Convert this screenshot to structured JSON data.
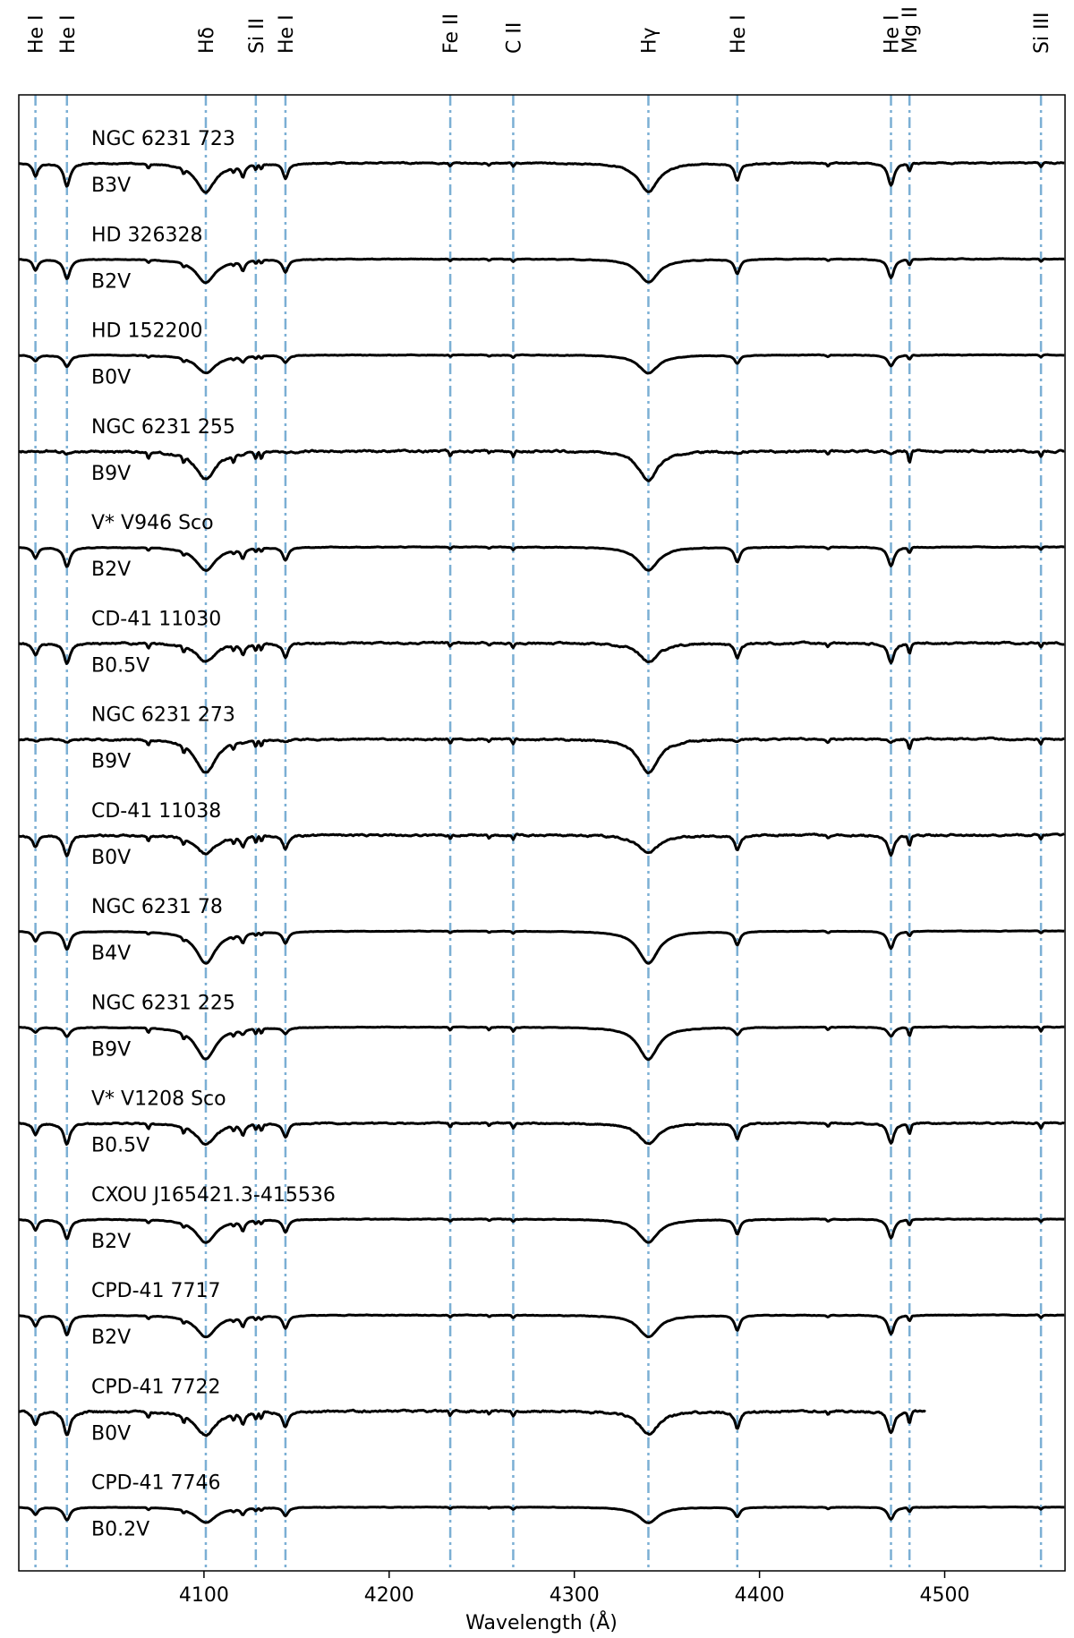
{
  "chart_data": {
    "type": "line",
    "title": "",
    "xlabel": "Wavelength (Å)",
    "ylabel": "",
    "xlim": [
      4000,
      4565
    ],
    "xticks": [
      4100,
      4200,
      4300,
      4400,
      4500
    ],
    "grid": false,
    "reference_lines": [
      {
        "label": "He I",
        "wavelength": 4009
      },
      {
        "label": "He I",
        "wavelength": 4026
      },
      {
        "label": "Hδ",
        "wavelength": 4101
      },
      {
        "label": "Si II",
        "wavelength": 4128
      },
      {
        "label": "He I",
        "wavelength": 4144
      },
      {
        "label": "Fe II",
        "wavelength": 4233
      },
      {
        "label": "C II",
        "wavelength": 4267
      },
      {
        "label": "Hγ",
        "wavelength": 4340
      },
      {
        "label": "He I",
        "wavelength": 4388
      },
      {
        "label": "He I",
        "wavelength": 4471
      },
      {
        "label": "Mg II",
        "wavelength": 4481
      },
      {
        "label": "Si III",
        "wavelength": 4552
      }
    ],
    "series": [
      {
        "name": "NGC 6231 723",
        "spectral_type": "B3V",
        "x_end": 4565,
        "balmer_depth": 0.55,
        "helium_depth": 0.45,
        "metal_depth": 0.15,
        "noise": 0.05
      },
      {
        "name": "HD 326328",
        "spectral_type": "B2V",
        "x_end": 4565,
        "balmer_depth": 0.45,
        "helium_depth": 0.38,
        "metal_depth": 0.1,
        "noise": 0.03
      },
      {
        "name": "HD 152200",
        "spectral_type": "B0V",
        "x_end": 4565,
        "balmer_depth": 0.35,
        "helium_depth": 0.22,
        "metal_depth": 0.08,
        "noise": 0.03
      },
      {
        "name": "NGC 6231 255",
        "spectral_type": "B9V",
        "x_end": 4565,
        "balmer_depth": 0.55,
        "helium_depth": 0.05,
        "metal_depth": 0.22,
        "noise": 0.09
      },
      {
        "name": "V* V946 Sco",
        "spectral_type": "B2V",
        "x_end": 4565,
        "balmer_depth": 0.45,
        "helium_depth": 0.38,
        "metal_depth": 0.1,
        "noise": 0.03
      },
      {
        "name": "CD-41 11030",
        "spectral_type": "B0.5V",
        "x_end": 4565,
        "balmer_depth": 0.36,
        "helium_depth": 0.4,
        "metal_depth": 0.18,
        "noise": 0.08
      },
      {
        "name": "NGC 6231 273",
        "spectral_type": "B9V",
        "x_end": 4565,
        "balmer_depth": 0.65,
        "helium_depth": 0.05,
        "metal_depth": 0.2,
        "noise": 0.07
      },
      {
        "name": "CD-41 11038",
        "spectral_type": "B0V",
        "x_end": 4565,
        "balmer_depth": 0.36,
        "helium_depth": 0.4,
        "metal_depth": 0.18,
        "noise": 0.08
      },
      {
        "name": "NGC 6231 78",
        "spectral_type": "B4V",
        "x_end": 4565,
        "balmer_depth": 0.62,
        "helium_depth": 0.35,
        "metal_depth": 0.08,
        "noise": 0.02
      },
      {
        "name": "NGC 6231 225",
        "spectral_type": "B9V",
        "x_end": 4565,
        "balmer_depth": 0.62,
        "helium_depth": 0.18,
        "metal_depth": 0.16,
        "noise": 0.03
      },
      {
        "name": "V* V1208 Sco",
        "spectral_type": "B0.5V",
        "x_end": 4565,
        "balmer_depth": 0.4,
        "helium_depth": 0.4,
        "metal_depth": 0.18,
        "noise": 0.06
      },
      {
        "name": "CXOU J165421.3-415536",
        "spectral_type": "B2V",
        "x_end": 4565,
        "balmer_depth": 0.45,
        "helium_depth": 0.38,
        "metal_depth": 0.1,
        "noise": 0.03
      },
      {
        "name": "CPD-41 7717",
        "spectral_type": "B2V",
        "x_end": 4565,
        "balmer_depth": 0.42,
        "helium_depth": 0.38,
        "metal_depth": 0.1,
        "noise": 0.03
      },
      {
        "name": "CPD-41 7722",
        "spectral_type": "B0V",
        "x_end": 4490,
        "balmer_depth": 0.45,
        "helium_depth": 0.45,
        "metal_depth": 0.2,
        "noise": 0.09
      },
      {
        "name": "CPD-41 7746",
        "spectral_type": "B0.2V",
        "x_end": 4565,
        "balmer_depth": 0.3,
        "helium_depth": 0.25,
        "metal_depth": 0.08,
        "noise": 0.02
      }
    ]
  }
}
